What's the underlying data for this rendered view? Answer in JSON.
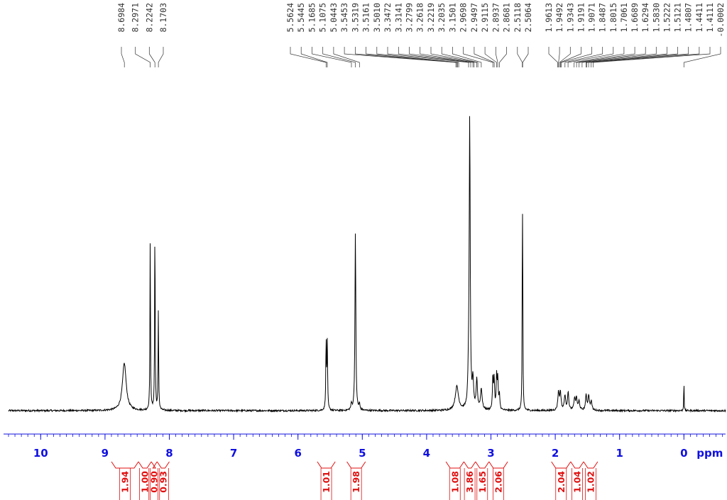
{
  "chart_data": {
    "type": "line",
    "title": "",
    "xlabel": "ppm",
    "ylabel": "",
    "x_reversed": true,
    "xlim": [
      10.5,
      -0.65
    ],
    "x_ticks": [
      {
        "value": 10,
        "label": "10"
      },
      {
        "value": 9,
        "label": "9"
      },
      {
        "value": 8,
        "label": "8"
      },
      {
        "value": 7,
        "label": "7"
      },
      {
        "value": 6,
        "label": "6"
      },
      {
        "value": 5,
        "label": "5"
      },
      {
        "value": 4,
        "label": "4"
      },
      {
        "value": 3,
        "label": "3"
      },
      {
        "value": 2,
        "label": "2"
      },
      {
        "value": 1,
        "label": "1"
      },
      {
        "value": 0,
        "label": "0"
      }
    ],
    "minor_tick_step": 0.1,
    "peak_labels": [
      "8.6984",
      "8.2971",
      "8.2242",
      "8.1703",
      "5.5624",
      "5.5445",
      "5.1685",
      "5.1075",
      "5.0443",
      "3.5453",
      "3.5319",
      "3.5161",
      "3.5010",
      "3.3472",
      "3.3141",
      "3.2799",
      "3.2618",
      "3.2219",
      "3.2035",
      "3.1501",
      "2.9698",
      "2.9497",
      "2.9115",
      "2.8937",
      "2.8681",
      "2.5118",
      "2.5064",
      "1.9613",
      "1.9492",
      "1.9343",
      "1.9191",
      "1.9071",
      "1.8487",
      "1.8015",
      "1.7061",
      "1.6689",
      "1.6294",
      "1.5830",
      "1.5222",
      "1.5121",
      "1.4807",
      "1.4411",
      "1.4111",
      "-0.0002"
    ],
    "peaks": [
      {
        "x": 8.7,
        "height": 0.16,
        "width": 0.035
      },
      {
        "x": 8.297,
        "height": 0.58,
        "width": 0.005
      },
      {
        "x": 8.2242,
        "height": 0.64,
        "width": 0.005
      },
      {
        "x": 8.1703,
        "height": 0.34,
        "width": 0.005
      },
      {
        "x": 5.5624,
        "height": 0.23,
        "width": 0.006
      },
      {
        "x": 5.5445,
        "height": 0.22,
        "width": 0.006
      },
      {
        "x": 5.1685,
        "height": 0.02,
        "width": 0.01
      },
      {
        "x": 5.1075,
        "height": 0.6,
        "width": 0.008
      },
      {
        "x": 5.0443,
        "height": 0.02,
        "width": 0.008
      },
      {
        "x": 3.53,
        "height": 0.08,
        "width": 0.03
      },
      {
        "x": 3.33,
        "height": 0.97,
        "width": 0.009
      },
      {
        "x": 3.3472,
        "height": 0.09,
        "width": 0.012
      },
      {
        "x": 3.28,
        "height": 0.09,
        "width": 0.012
      },
      {
        "x": 3.22,
        "height": 0.1,
        "width": 0.012
      },
      {
        "x": 3.15,
        "height": 0.07,
        "width": 0.015
      },
      {
        "x": 2.9698,
        "height": 0.11,
        "width": 0.008
      },
      {
        "x": 2.9497,
        "height": 0.1,
        "width": 0.008
      },
      {
        "x": 2.9115,
        "height": 0.11,
        "width": 0.008
      },
      {
        "x": 2.8937,
        "height": 0.1,
        "width": 0.008
      },
      {
        "x": 2.8681,
        "height": 0.05,
        "width": 0.008
      },
      {
        "x": 2.5118,
        "height": 0.48,
        "width": 0.004
      },
      {
        "x": 2.5064,
        "height": 0.48,
        "width": 0.004
      },
      {
        "x": 1.95,
        "height": 0.06,
        "width": 0.012
      },
      {
        "x": 1.92,
        "height": 0.06,
        "width": 0.012
      },
      {
        "x": 1.85,
        "height": 0.05,
        "width": 0.012
      },
      {
        "x": 1.8,
        "height": 0.06,
        "width": 0.012
      },
      {
        "x": 1.7,
        "height": 0.04,
        "width": 0.012
      },
      {
        "x": 1.67,
        "height": 0.04,
        "width": 0.012
      },
      {
        "x": 1.63,
        "height": 0.03,
        "width": 0.012
      },
      {
        "x": 1.52,
        "height": 0.05,
        "width": 0.012
      },
      {
        "x": 1.48,
        "height": 0.05,
        "width": 0.012
      },
      {
        "x": 1.44,
        "height": 0.03,
        "width": 0.012
      },
      {
        "x": 0.0,
        "height": 0.13,
        "width": 0.003
      }
    ],
    "integrals": [
      {
        "label": "1.94",
        "from": 8.9,
        "to": 8.48
      },
      {
        "label": "1.00",
        "from": 8.48,
        "to": 8.28
      },
      {
        "label": "0.90",
        "from": 8.28,
        "to": 8.19
      },
      {
        "label": "0.93",
        "from": 8.19,
        "to": 8.0
      },
      {
        "label": "1.01",
        "from": 5.7,
        "to": 5.42
      },
      {
        "label": "1.98",
        "from": 5.24,
        "to": 4.95
      },
      {
        "label": "1.08",
        "from": 3.7,
        "to": 3.42
      },
      {
        "label": "3.86",
        "from": 3.42,
        "to": 3.24
      },
      {
        "label": "1.65",
        "from": 3.24,
        "to": 3.03
      },
      {
        "label": "2.06",
        "from": 3.03,
        "to": 2.74
      },
      {
        "label": "2.04",
        "from": 2.06,
        "to": 1.76
      },
      {
        "label": "1.04",
        "from": 1.76,
        "to": 1.56
      },
      {
        "label": "1.02",
        "from": 1.56,
        "to": 1.34
      }
    ]
  },
  "colors": {
    "spectrum": "#000000",
    "axis": "#1010e0",
    "integral": "#e01010",
    "peak_label": "#333333"
  }
}
